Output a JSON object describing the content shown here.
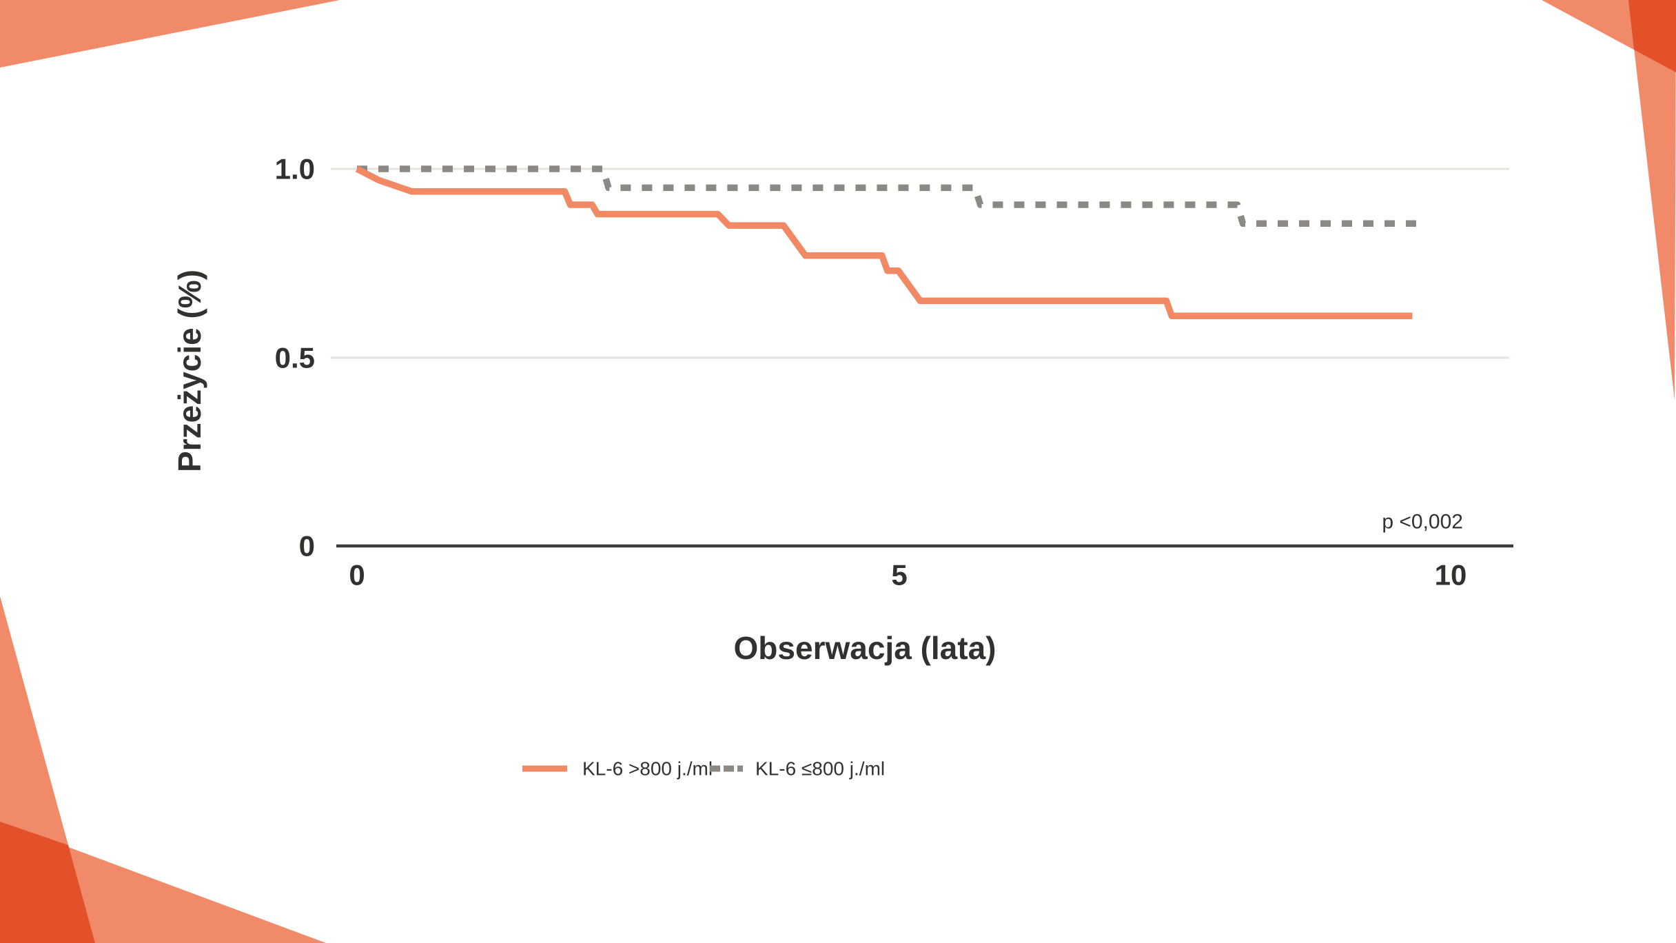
{
  "slide": {
    "background": "#FFFFFF",
    "accent_salmon": "#F08A68",
    "accent_dark_overlap": "#E2512A",
    "text_color": "#33312E",
    "axis_color": "#3B3A37",
    "gridline_color": "#E6E3DF"
  },
  "chart_data": {
    "type": "line",
    "subtype": "kaplan_meier_survival_step",
    "title": "",
    "xlabel": "Obserwacja (lata)",
    "ylabel": "Przeżycie (%)",
    "xlim": [
      0,
      10.6
    ],
    "ylim": [
      0,
      1.05
    ],
    "x_tick_labels": [
      "0",
      "5",
      "10"
    ],
    "x_tick_values": [
      0,
      5,
      10
    ],
    "y_tick_labels": [
      "1.0",
      "0.5",
      "0"
    ],
    "y_tick_values": [
      1.0,
      0.5,
      0
    ],
    "grid": {
      "horizontal": true,
      "vertical": false
    },
    "legend_position": "bottom-center",
    "annotations": [
      {
        "text": "p <0,002",
        "x": 9.7,
        "y": 0.06
      }
    ],
    "series": [
      {
        "name": "KL-6 >800 j./ml",
        "color": "#F18A64",
        "dash": false,
        "points": [
          [
            0,
            1.0
          ],
          [
            0.2,
            0.97
          ],
          [
            0.5,
            0.94
          ],
          [
            1.9,
            0.94
          ],
          [
            1.95,
            0.905
          ],
          [
            2.15,
            0.905
          ],
          [
            2.2,
            0.88
          ],
          [
            3.3,
            0.88
          ],
          [
            3.4,
            0.85
          ],
          [
            3.9,
            0.85
          ],
          [
            4.1,
            0.77
          ],
          [
            4.8,
            0.77
          ],
          [
            4.85,
            0.73
          ],
          [
            4.95,
            0.73
          ],
          [
            5.15,
            0.65
          ],
          [
            7.4,
            0.65
          ],
          [
            7.45,
            0.61
          ],
          [
            9.65,
            0.61
          ]
        ]
      },
      {
        "name": "KL-6 ≤800 j./ml",
        "color": "#8C8984",
        "dash": true,
        "points": [
          [
            0,
            1.0
          ],
          [
            2.25,
            1.0
          ],
          [
            2.3,
            0.95
          ],
          [
            5.65,
            0.95
          ],
          [
            5.7,
            0.905
          ],
          [
            8.05,
            0.905
          ],
          [
            8.1,
            0.855
          ],
          [
            9.7,
            0.855
          ]
        ]
      }
    ]
  }
}
